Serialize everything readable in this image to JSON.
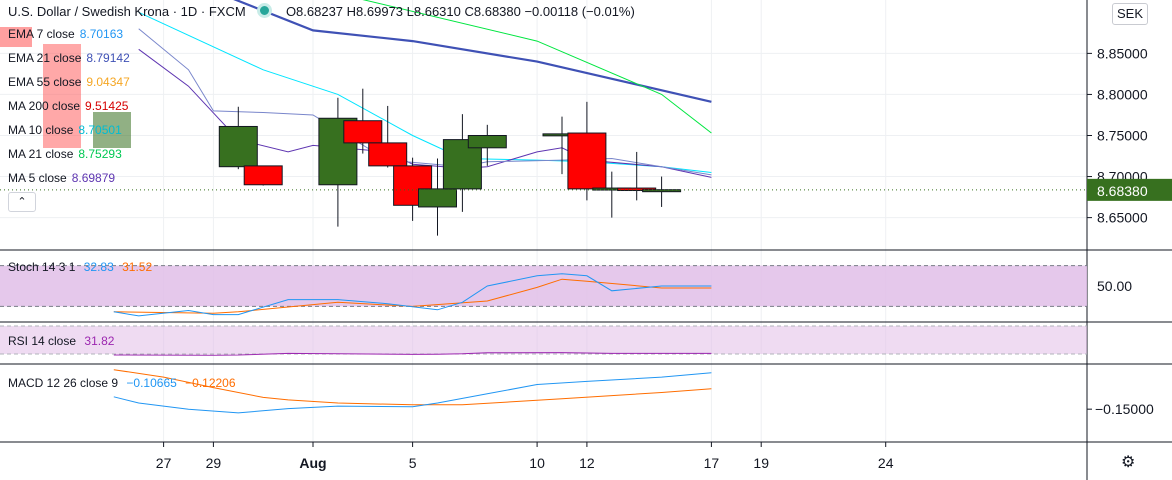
{
  "header": {
    "title": "U.S. Dollar / Swedish Krona · 1D · FXCM",
    "ohlc": "O8.68237  H8.69973  L8.66310  C8.68380  −0.00118 (−0.01%)"
  },
  "currency_button": "SEK",
  "collapse_icon": "chevron-up-icon",
  "settings_icon": "gear-icon",
  "colors": {
    "up": "#37701f",
    "down": "#ff0000",
    "ema7": "#2196f3",
    "ema21": "#5c6bc0",
    "ema55": "#f5a623",
    "ma200": "#d50000",
    "ma10": "#00e5ff",
    "ma21": "#00e640",
    "ma5": "#5e35b1",
    "price_label": "#37701f",
    "stoch_k": "#2196f3",
    "stoch_d": "#ff6d00",
    "rsi": "#9c27b0",
    "macd": "#2196f3",
    "signal": "#ff6d00",
    "panel_fill": "#e1bee7"
  },
  "indicators": [
    {
      "label": "EMA 7 close",
      "value": "8.70163",
      "color": "#2196f3"
    },
    {
      "label": "EMA 21 close",
      "value": "8.79142",
      "color": "#3f51b5"
    },
    {
      "label": "EMA 55 close",
      "value": "9.04347",
      "color": "#f5a623"
    },
    {
      "label": "MA 200 close",
      "value": "9.51425",
      "color": "#d50000"
    },
    {
      "label": "MA 10 close",
      "value": "8.70501",
      "color": "#00bcd4"
    },
    {
      "label": "MA 21 close",
      "value": "8.75293",
      "color": "#00c853"
    },
    {
      "label": "MA 5 close",
      "value": "8.69879",
      "color": "#5e35b1"
    }
  ],
  "stoch_legend": {
    "label": "Stoch 14 3 1",
    "k": "32.83",
    "d": "31.52"
  },
  "rsi_legend": {
    "label": "RSI 14 close",
    "value": "31.82"
  },
  "macd_legend": {
    "label": "MACD 12 26 close 9",
    "macd": "−0.10665",
    "signal": "−0.12206"
  },
  "chart_data": {
    "type": "candlestick",
    "x_labels": [
      "27",
      "29",
      "Aug",
      "5",
      "10",
      "12",
      "17",
      "19",
      "24"
    ],
    "x_label_days": [
      -5,
      -3,
      1,
      5,
      10,
      12,
      17,
      19,
      24
    ],
    "price_axis": {
      "ticks": [
        "8.85000",
        "8.80000",
        "8.75000",
        "8.70000",
        "8.65000"
      ],
      "tick_values": [
        8.85,
        8.8,
        8.75,
        8.7,
        8.65
      ],
      "ylim": [
        8.613,
        8.915
      ]
    },
    "last_price": "8.68380",
    "candles": [
      {
        "day": -2,
        "o": 8.712,
        "h": 8.785,
        "l": 8.709,
        "c": 8.761
      },
      {
        "day": -1,
        "o": 8.713,
        "h": 8.712,
        "l": 8.689,
        "c": 8.69
      },
      {
        "day": 2,
        "o": 8.69,
        "h": 8.796,
        "l": 8.639,
        "c": 8.771
      },
      {
        "day": 3,
        "o": 8.768,
        "h": 8.807,
        "l": 8.728,
        "c": 8.741
      },
      {
        "day": 4,
        "o": 8.741,
        "h": 8.786,
        "l": 8.711,
        "c": 8.713
      },
      {
        "day": 5,
        "o": 8.713,
        "h": 8.723,
        "l": 8.646,
        "c": 8.665
      },
      {
        "day": 6,
        "o": 8.663,
        "h": 8.722,
        "l": 8.628,
        "c": 8.685
      },
      {
        "day": 7,
        "o": 8.685,
        "h": 8.776,
        "l": 8.657,
        "c": 8.745
      },
      {
        "day": 8,
        "o": 8.735,
        "h": 8.763,
        "l": 8.713,
        "c": 8.75
      },
      {
        "day": 11,
        "o": 8.75,
        "h": 8.773,
        "l": 8.703,
        "c": 8.752
      },
      {
        "day": 12,
        "o": 8.753,
        "h": 8.791,
        "l": 8.671,
        "c": 8.685
      },
      {
        "day": 13,
        "o": 8.685,
        "h": 8.706,
        "l": 8.65,
        "c": 8.686
      },
      {
        "day": 14,
        "o": 8.686,
        "h": 8.73,
        "l": 8.671,
        "c": 8.683
      },
      {
        "day": 15,
        "o": 8.682,
        "h": 8.7,
        "l": 8.663,
        "c": 8.684
      }
    ],
    "ma_lines": [
      {
        "name": "EMA 21 close",
        "color": "#3f51b5",
        "width": 2.2,
        "points": [
          [
            -6,
            8.962
          ],
          [
            1,
            8.878
          ],
          [
            5,
            8.865
          ],
          [
            10,
            8.84
          ],
          [
            17,
            8.791
          ]
        ]
      },
      {
        "name": "MA 21 close",
        "color": "#00e640",
        "width": 1,
        "points": [
          [
            -6,
            8.985
          ],
          [
            1,
            8.93
          ],
          [
            10,
            8.865
          ],
          [
            15,
            8.8
          ],
          [
            17,
            8.753
          ]
        ]
      },
      {
        "name": "MA 10 close",
        "color": "#00e5ff",
        "width": 1,
        "points": [
          [
            -6,
            8.9
          ],
          [
            -1,
            8.83
          ],
          [
            2,
            8.8
          ],
          [
            5,
            8.75
          ],
          [
            7,
            8.722
          ],
          [
            10,
            8.72
          ],
          [
            12,
            8.718
          ],
          [
            15,
            8.712
          ],
          [
            17,
            8.705
          ]
        ]
      },
      {
        "name": "MA 5 close",
        "color": "#5e35b1",
        "width": 1,
        "points": [
          [
            -6,
            8.855
          ],
          [
            -4,
            8.81
          ],
          [
            -2,
            8.745
          ],
          [
            0,
            8.73
          ],
          [
            1,
            8.738
          ],
          [
            4,
            8.73
          ],
          [
            5,
            8.715
          ],
          [
            7,
            8.71
          ],
          [
            8,
            8.712
          ],
          [
            10,
            8.73
          ],
          [
            11,
            8.735
          ],
          [
            12,
            8.72
          ],
          [
            15,
            8.712
          ],
          [
            17,
            8.699
          ]
        ]
      },
      {
        "name": "MA 200 close / EMA 7 region",
        "color": "#7986cb",
        "width": 1,
        "points": [
          [
            -6,
            8.88
          ],
          [
            -4,
            8.83
          ],
          [
            -3,
            8.78
          ],
          [
            -1,
            8.778
          ],
          [
            1,
            8.775
          ],
          [
            4,
            8.72
          ],
          [
            7,
            8.712
          ],
          [
            8,
            8.718
          ],
          [
            11,
            8.72
          ],
          [
            13,
            8.722
          ],
          [
            17,
            8.702
          ]
        ]
      }
    ],
    "stoch": {
      "ylim": [
        0,
        100
      ],
      "band": [
        20,
        80
      ],
      "tick": "50.00",
      "k": [
        [
          -7,
          12
        ],
        [
          -6,
          6
        ],
        [
          -4,
          14
        ],
        [
          -3,
          8
        ],
        [
          -2,
          8
        ],
        [
          0,
          30
        ],
        [
          2,
          30
        ],
        [
          4,
          24
        ],
        [
          6,
          15
        ],
        [
          7,
          26
        ],
        [
          8,
          50
        ],
        [
          10,
          65
        ],
        [
          11,
          68
        ],
        [
          12,
          65
        ],
        [
          13,
          43
        ],
        [
          15,
          50
        ],
        [
          17,
          50
        ]
      ],
      "d": [
        [
          -7,
          12
        ],
        [
          -3,
          10
        ],
        [
          -2,
          12
        ],
        [
          2,
          26
        ],
        [
          5,
          20
        ],
        [
          8,
          28
        ],
        [
          10,
          48
        ],
        [
          11,
          60
        ],
        [
          12,
          57
        ],
        [
          15,
          47
        ],
        [
          17,
          47
        ]
      ]
    },
    "rsi": {
      "ylim": [
        0,
        100
      ],
      "points": [
        [
          -7,
          30
        ],
        [
          -3,
          29
        ],
        [
          -2,
          30
        ],
        [
          0,
          38
        ],
        [
          2,
          36
        ],
        [
          5,
          33
        ],
        [
          6,
          34
        ],
        [
          7,
          36
        ],
        [
          8,
          41
        ],
        [
          11,
          42
        ],
        [
          13,
          38
        ],
        [
          17,
          38
        ]
      ]
    },
    "macd": {
      "tick": "−0.15000",
      "ylim": [
        -0.2,
        -0.08
      ],
      "macd": [
        [
          -7,
          -0.13
        ],
        [
          -6,
          -0.14
        ],
        [
          -4,
          -0.15
        ],
        [
          -2,
          -0.156
        ],
        [
          0,
          -0.149
        ],
        [
          2,
          -0.145
        ],
        [
          5,
          -0.146
        ],
        [
          6,
          -0.14
        ],
        [
          8,
          -0.125
        ],
        [
          10,
          -0.11
        ],
        [
          12,
          -0.105
        ],
        [
          15,
          -0.098
        ],
        [
          17,
          -0.091
        ]
      ],
      "signal": [
        [
          -7,
          -0.086
        ],
        [
          -5,
          -0.098
        ],
        [
          -3,
          -0.115
        ],
        [
          -1,
          -0.131
        ],
        [
          0,
          -0.135
        ],
        [
          2,
          -0.14
        ],
        [
          5,
          -0.143
        ],
        [
          7,
          -0.143
        ],
        [
          9,
          -0.138
        ],
        [
          11,
          -0.133
        ],
        [
          13,
          -0.128
        ],
        [
          15,
          -0.123
        ],
        [
          17,
          -0.117
        ]
      ]
    }
  }
}
